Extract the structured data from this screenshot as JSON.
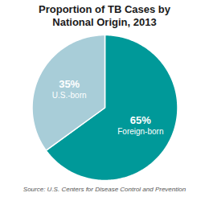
{
  "chart_data": {
    "type": "pie",
    "title": "Proportion of TB Cases by\nNational Origin, 2013",
    "categories": [
      "Foreign-born",
      "U.S.-born"
    ],
    "values": [
      65,
      35
    ],
    "value_labels": [
      "65%",
      "35%"
    ],
    "data_labels": true,
    "colors": [
      "#009999",
      "#a8cdd8"
    ],
    "source": "Source: U.S. Centers for Disease Control and Prevention"
  }
}
